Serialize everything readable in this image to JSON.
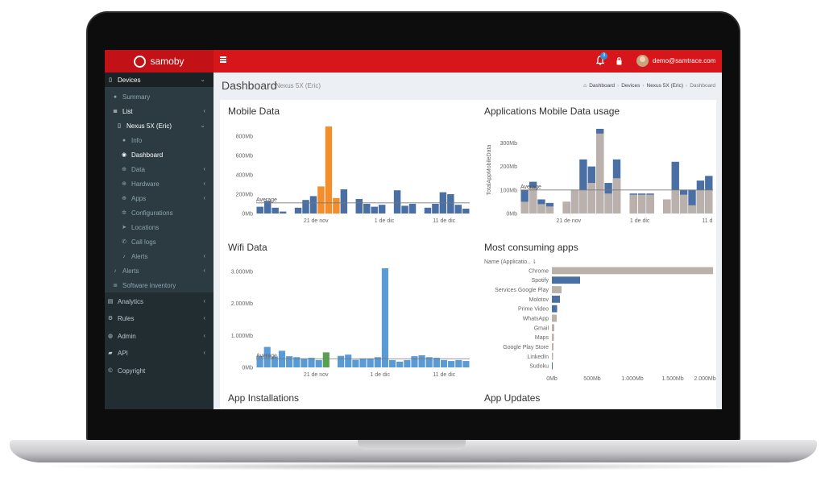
{
  "app": {
    "brand": "samoby",
    "notifications_count": "3",
    "user_email": "demo@samtrace.com"
  },
  "colors": {
    "header_red": "#d7161b",
    "sidebar_dark": "#222d32",
    "bar_blue": "#4a6fa5",
    "bar_orange": "#f28e2b",
    "bar_gray": "#bab0ac",
    "bar_lightblue": "#5b9bd5",
    "bar_green": "#59a14f"
  },
  "sidebar": {
    "items": [
      {
        "label": "Devices",
        "icon": "tablet-icon"
      },
      {
        "label": "Summary",
        "icon": "dashboard-icon"
      },
      {
        "label": "List",
        "icon": "list-icon"
      },
      {
        "label": "Nexus 5X (Eric)",
        "icon": "tablet-icon"
      },
      {
        "label": "Info",
        "icon": "info-icon"
      },
      {
        "label": "Dashboard",
        "icon": "eye-icon"
      },
      {
        "label": "Data",
        "icon": "plus-circle-icon"
      },
      {
        "label": "Hardware",
        "icon": "plus-circle-icon"
      },
      {
        "label": "Apps",
        "icon": "plus-circle-icon"
      },
      {
        "label": "Configurations",
        "icon": "gear-icon"
      },
      {
        "label": "Locations",
        "icon": "location-arrow-icon"
      },
      {
        "label": "Call logs",
        "icon": "phone-icon"
      },
      {
        "label": "Alerts",
        "icon": "bell-icon"
      },
      {
        "label": "Alerts",
        "icon": "bell-icon"
      },
      {
        "label": "Software inventory",
        "icon": "list-icon"
      },
      {
        "label": "Analytics",
        "icon": "chart-icon"
      },
      {
        "label": "Rules",
        "icon": "cogs-icon"
      },
      {
        "label": "Admin",
        "icon": "user-icon"
      },
      {
        "label": "API",
        "icon": "book-icon"
      },
      {
        "label": "Copyright",
        "icon": "copyright-icon"
      }
    ]
  },
  "page": {
    "title": "Dashboard",
    "subtitle": "Nexus 5X (Eric)",
    "breadcrumb": [
      "Dashboard",
      "Devices",
      "Nexus 5X (Eric)",
      "Dashboard"
    ]
  },
  "panels": {
    "mobile_data": "Mobile Data",
    "apps_mobile_usage": "Applications Mobile Data usage",
    "wifi_data": "Wifi Data",
    "most_consuming": "Most consuming apps",
    "app_installations": "App Installations",
    "app_updates": "App Updates"
  },
  "chart_data": [
    {
      "id": "mobile_data",
      "type": "bar",
      "title": "Mobile Data",
      "y_ticks": [
        "0Mb",
        "200Mb",
        "400Mb",
        "600Mb",
        "800Mb"
      ],
      "ylim": [
        0,
        900
      ],
      "x_ticks": [
        "21 de nov",
        "1 de dic",
        "11 de dic"
      ],
      "average_label": "Average",
      "average_value": 110,
      "series": [
        {
          "values": [
            70,
            130,
            60,
            20,
            0,
            60,
            140,
            180,
            280,
            900,
            160,
            250,
            0,
            150,
            100,
            70,
            90,
            0,
            240,
            80,
            100,
            0,
            60,
            100,
            220,
            200,
            90,
            50
          ],
          "colors": [
            "b",
            "b",
            "b",
            "b",
            "n",
            "b",
            "b",
            "b",
            "o",
            "o",
            "o",
            "b",
            "n",
            "b",
            "b",
            "b",
            "b",
            "n",
            "b",
            "b",
            "b",
            "n",
            "b",
            "b",
            "b",
            "b",
            "b",
            "b"
          ]
        }
      ]
    },
    {
      "id": "apps_mobile_usage",
      "type": "bar",
      "title": "Applications Mobile Data usage",
      "ylabel": "TotalAppMobileData",
      "y_ticks": [
        "0Mb",
        "100Mb",
        "200Mb",
        "300Mb"
      ],
      "ylim": [
        0,
        370
      ],
      "x_ticks": [
        "21 de nov",
        "1 de dic",
        "11 d"
      ],
      "average_label": "Average",
      "average_value": 100,
      "series": [
        {
          "name": "blue",
          "values": [
            100,
            135,
            60,
            45,
            0,
            50,
            100,
            230,
            200,
            360,
            130,
            230,
            0,
            85,
            85,
            85,
            0,
            60,
            220,
            100,
            100,
            140,
            160
          ]
        },
        {
          "name": "gray",
          "values": [
            50,
            110,
            40,
            30,
            0,
            50,
            100,
            100,
            130,
            340,
            85,
            150,
            0,
            80,
            80,
            80,
            0,
            60,
            100,
            80,
            35,
            100,
            100
          ]
        }
      ]
    },
    {
      "id": "wifi_data",
      "type": "bar",
      "title": "Wifi Data",
      "y_ticks": [
        "0Mb",
        "1.000Mb",
        "2.000Mb",
        "3.000Mb"
      ],
      "ylim": [
        0,
        3300
      ],
      "x_ticks": [
        "21 de nov",
        "1 de dic",
        "11 de dic"
      ],
      "average_label": "Average",
      "average_value": 270,
      "series": [
        {
          "values": [
            350,
            640,
            340,
            520,
            350,
            320,
            280,
            300,
            230,
            470,
            0,
            360,
            400,
            240,
            280,
            280,
            320,
            3100,
            230,
            180,
            230,
            350,
            380,
            320,
            300,
            230,
            200,
            230,
            200
          ]
        }
      ],
      "highlight": {
        "index": 9,
        "color": "green"
      }
    },
    {
      "id": "most_consuming",
      "type": "bar",
      "orientation": "horizontal",
      "title": "Most consuming apps",
      "header": "Name (Applicatio..",
      "categories": [
        "Chrome",
        "Spotify",
        "Services Google Play",
        "Molotov",
        "Prime Video",
        "WhatsApp",
        "Gmail",
        "Maps",
        "Google Play Store",
        "LinkedIn",
        "Sudoku"
      ],
      "values": [
        2000,
        350,
        120,
        100,
        65,
        60,
        30,
        25,
        20,
        15,
        10
      ],
      "value_colors": [
        "gray",
        "blue",
        "gray",
        "blue",
        "blue",
        "gray",
        "gray",
        "gray",
        "gray",
        "gray",
        "blue"
      ],
      "x_ticks": [
        "0Mb",
        "500Mb",
        "1.000Mb",
        "1.500Mb",
        "2.000Mb"
      ],
      "xlim": [
        0,
        2000
      ]
    }
  ]
}
